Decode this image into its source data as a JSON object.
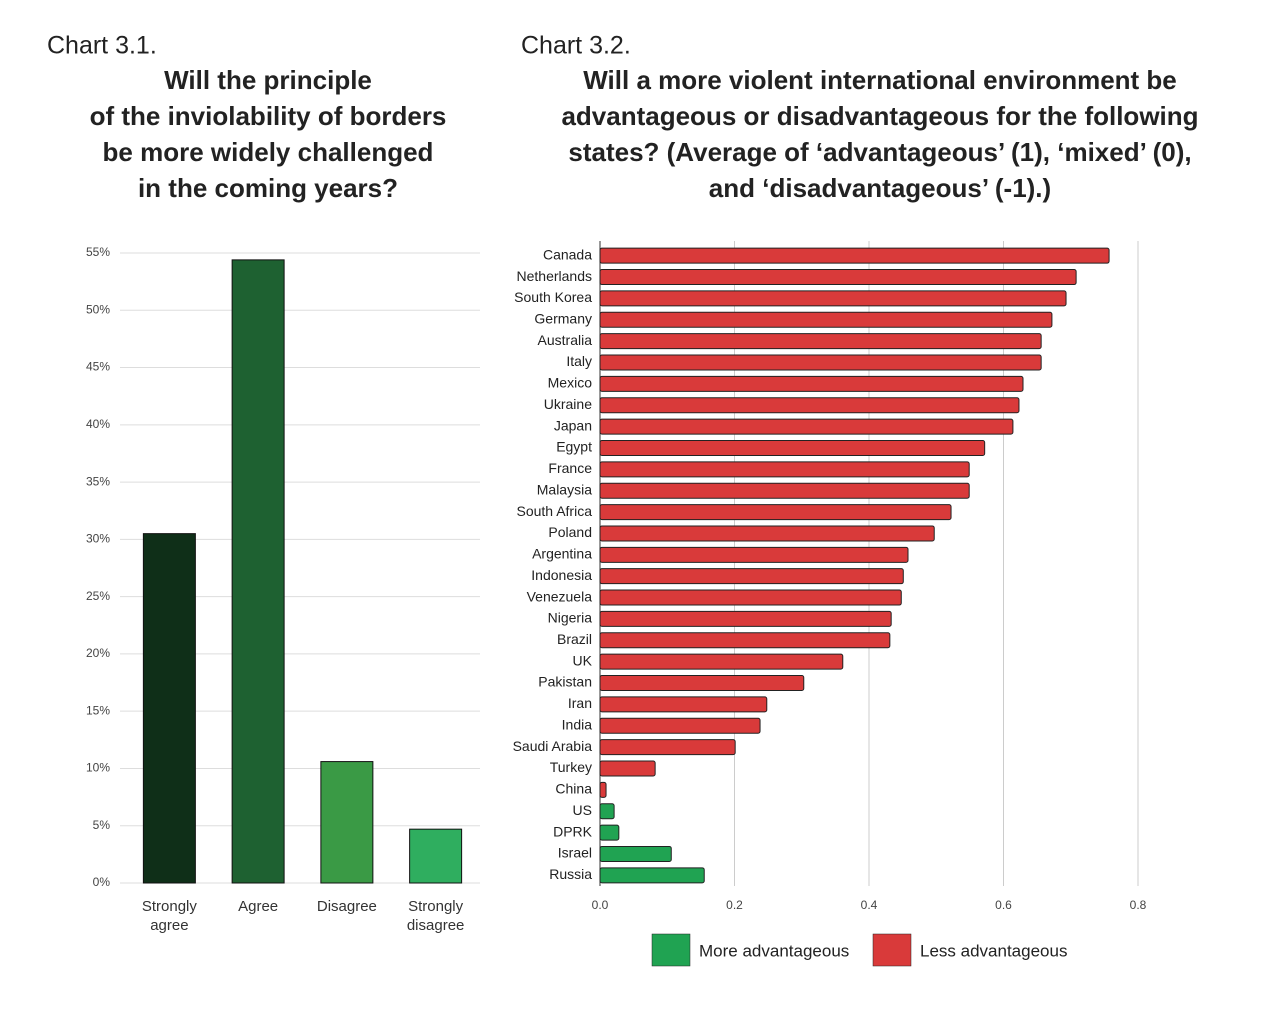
{
  "chart_data": [
    {
      "type": "bar",
      "label": "Chart 3.1.",
      "title": [
        "Will the principle",
        "of the inviolability of borders",
        "be more widely challenged",
        "in the coming years?"
      ],
      "categories": [
        "Strongly agree",
        "Agree",
        "Disagree",
        "Strongly disagree"
      ],
      "values": [
        30.5,
        54.4,
        10.6,
        4.7
      ],
      "colors": [
        "#0f2f18",
        "#1e6131",
        "#3a9a45",
        "#2fae5f"
      ],
      "ylim": [
        0,
        55
      ],
      "yticks": [
        {
          "value": 0,
          "label": "0%"
        },
        {
          "value": 5,
          "label": "5%"
        },
        {
          "value": 10,
          "label": "10%"
        },
        {
          "value": 15,
          "label": "15%"
        },
        {
          "value": 20,
          "label": "20%"
        },
        {
          "value": 25,
          "label": "25%"
        },
        {
          "value": 30,
          "label": "30%"
        },
        {
          "value": 35,
          "label": "35%"
        },
        {
          "value": 40,
          "label": "40%"
        },
        {
          "value": 45,
          "label": "45%"
        },
        {
          "value": 50,
          "label": "50%"
        },
        {
          "value": 55,
          "label": "55%"
        }
      ],
      "grid": true
    },
    {
      "type": "hbar",
      "label": "Chart 3.2.",
      "title": [
        "Will a more violent international environment be",
        "advantageous or disadvantageous for the following",
        "states? (Average of ‘advantageous’ (1), ‘mixed’ (0),",
        "and ‘disadvantageous’ (-1).)"
      ],
      "categories": [
        "Canada",
        "Netherlands",
        "South Korea",
        "Germany",
        "Australia",
        "Italy",
        "Mexico",
        "Ukraine",
        "Japan",
        "Egypt",
        "France",
        "Malaysia",
        "South Africa",
        "Poland",
        "Argentina",
        "Indonesia",
        "Venezuela",
        "Nigeria",
        "Brazil",
        "UK",
        "Pakistan",
        "Iran",
        "India",
        "Saudi Arabia",
        "Turkey",
        "China",
        "US",
        "DPRK",
        "Israel",
        "Russia"
      ],
      "series": [
        {
          "name": "More advantageous",
          "color": "#20a352",
          "values": [
            null,
            null,
            null,
            null,
            null,
            null,
            null,
            null,
            null,
            null,
            null,
            null,
            null,
            null,
            null,
            null,
            null,
            null,
            null,
            null,
            null,
            null,
            null,
            null,
            null,
            null,
            0.021,
            0.028,
            0.106,
            0.155
          ]
        },
        {
          "name": "Less advantageous",
          "color": "#d93a3a",
          "values": [
            0.757,
            0.708,
            0.693,
            0.672,
            0.656,
            0.656,
            0.629,
            0.623,
            0.614,
            0.572,
            0.549,
            0.549,
            0.522,
            0.497,
            0.458,
            0.451,
            0.448,
            0.433,
            0.431,
            0.361,
            0.303,
            0.248,
            0.238,
            0.201,
            0.082,
            0.009,
            null,
            null,
            null,
            null
          ]
        }
      ],
      "xlim": [
        0,
        0.8
      ],
      "xticks": [
        {
          "value": 0,
          "label": "0.0"
        },
        0.2,
        0.4,
        0.6,
        0.8
      ],
      "grid": true,
      "legend": "bottom"
    }
  ]
}
